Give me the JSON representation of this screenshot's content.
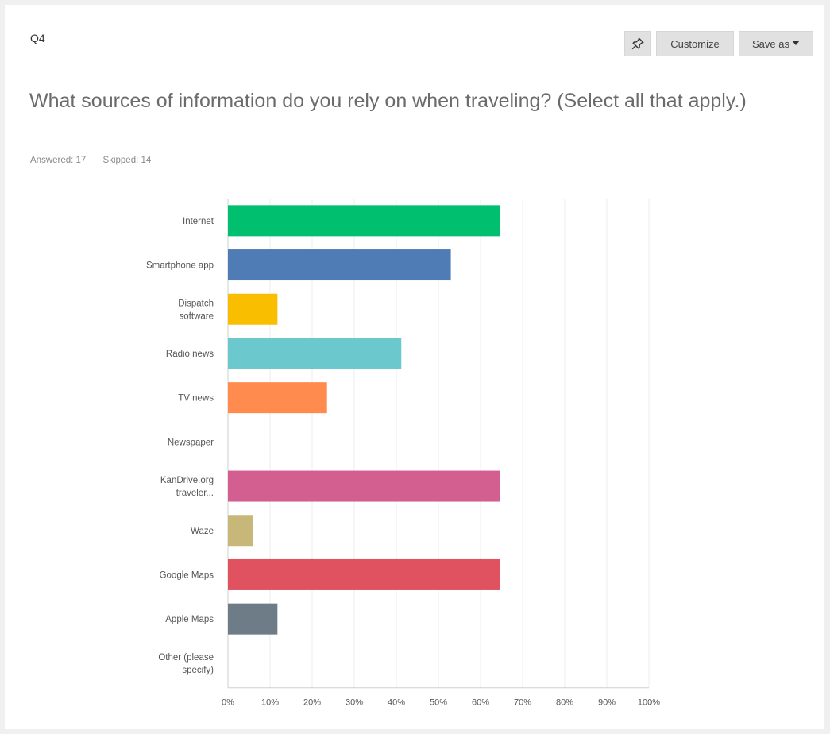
{
  "question": {
    "number": "Q4",
    "title": "What sources of information do you rely on when traveling? (Select all that apply.)",
    "answered_label": "Answered: 17",
    "skipped_label": "Skipped: 14"
  },
  "toolbar": {
    "pin_icon": "pin-icon",
    "customize_label": "Customize",
    "save_as_label": "Save as"
  },
  "colors": {
    "grid": "#ececec",
    "axis": "#cfcfcf"
  },
  "chart_data": {
    "type": "bar",
    "orientation": "horizontal",
    "categories": [
      "Internet",
      "Smartphone app",
      "Dispatch software",
      "Radio news",
      "TV news",
      "Newspaper",
      "KanDrive.org traveler...",
      "Waze",
      "Google Maps",
      "Apple Maps",
      "Other (please specify)"
    ],
    "category_lines": [
      [
        "Internet"
      ],
      [
        "Smartphone app"
      ],
      [
        "Dispatch",
        "software"
      ],
      [
        "Radio news"
      ],
      [
        "TV news"
      ],
      [
        "Newspaper"
      ],
      [
        "KanDrive.org",
        "traveler..."
      ],
      [
        "Waze"
      ],
      [
        "Google Maps"
      ],
      [
        "Apple Maps"
      ],
      [
        "Other (please",
        "specify)"
      ]
    ],
    "values": [
      64.71,
      52.94,
      11.76,
      41.18,
      23.53,
      0,
      64.71,
      5.88,
      64.71,
      11.76,
      0
    ],
    "colors": [
      "#00bf6f",
      "#507cb6",
      "#f9be00",
      "#6bc8cd",
      "#ff8b4f",
      "#7f7fff",
      "#d25f90",
      "#c7b879",
      "#e05260",
      "#6e7c87",
      "#a0a0a0"
    ],
    "xlim": [
      0,
      100
    ],
    "xticks": [
      "0%",
      "10%",
      "20%",
      "30%",
      "40%",
      "50%",
      "60%",
      "70%",
      "80%",
      "90%",
      "100%"
    ],
    "grid": true,
    "title": "",
    "xlabel": "",
    "ylabel": ""
  }
}
